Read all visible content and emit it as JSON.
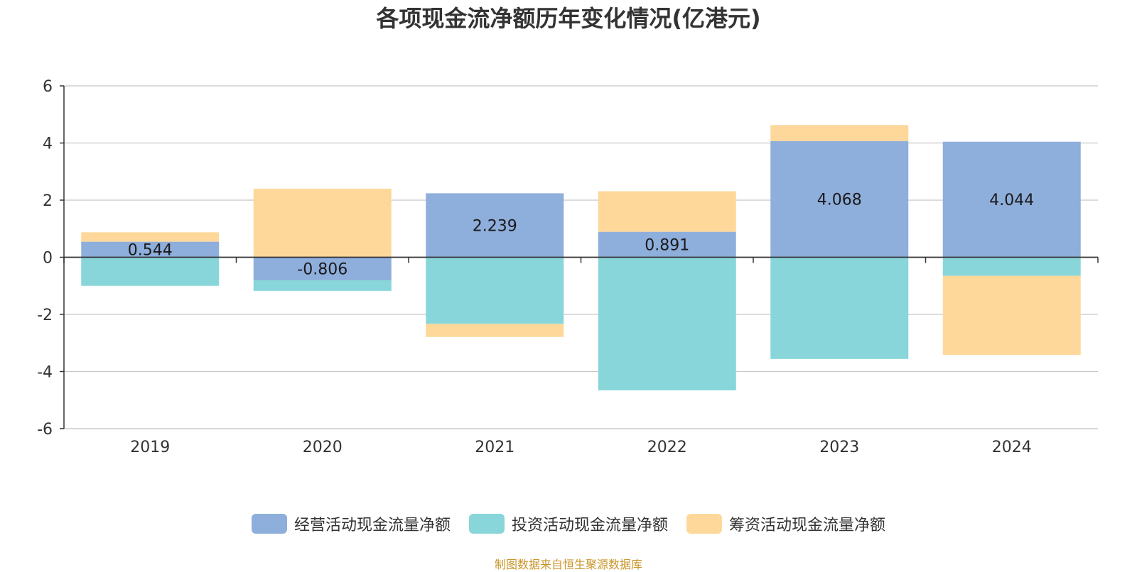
{
  "chart_data": {
    "type": "bar",
    "stacked": true,
    "title": "各项现金流净额历年变化情况(亿港元)",
    "categories": [
      "2019",
      "2020",
      "2021",
      "2022",
      "2023",
      "2024"
    ],
    "series": [
      {
        "name": "经营活动现金流量净额",
        "color": "#8eaedc",
        "values": [
          0.544,
          -0.806,
          2.239,
          0.891,
          4.068,
          4.044
        ],
        "labels": [
          "0.544",
          "-0.806",
          "2.239",
          "0.891",
          "4.068",
          "4.044"
        ]
      },
      {
        "name": "投资活动现金流量净额",
        "color": "#88d6d9",
        "values": [
          -1.0,
          -0.37,
          -2.33,
          -4.66,
          -3.56,
          -0.65
        ]
      },
      {
        "name": "筹资活动现金流量净额",
        "color": "#fed89b",
        "values": [
          0.33,
          2.4,
          -0.46,
          1.42,
          0.56,
          -2.77
        ]
      }
    ],
    "ylim": [
      -6,
      6
    ],
    "yticks": [
      "6",
      "4",
      "2",
      "0",
      "-2",
      "-4",
      "-6"
    ],
    "ytick_values": [
      6,
      4,
      2,
      0,
      -2,
      -4,
      -6
    ],
    "grid": true,
    "legend_position": "bottom-center",
    "xlabel": "",
    "ylabel": ""
  },
  "source_note": "制图数据来自恒生聚源数据库"
}
